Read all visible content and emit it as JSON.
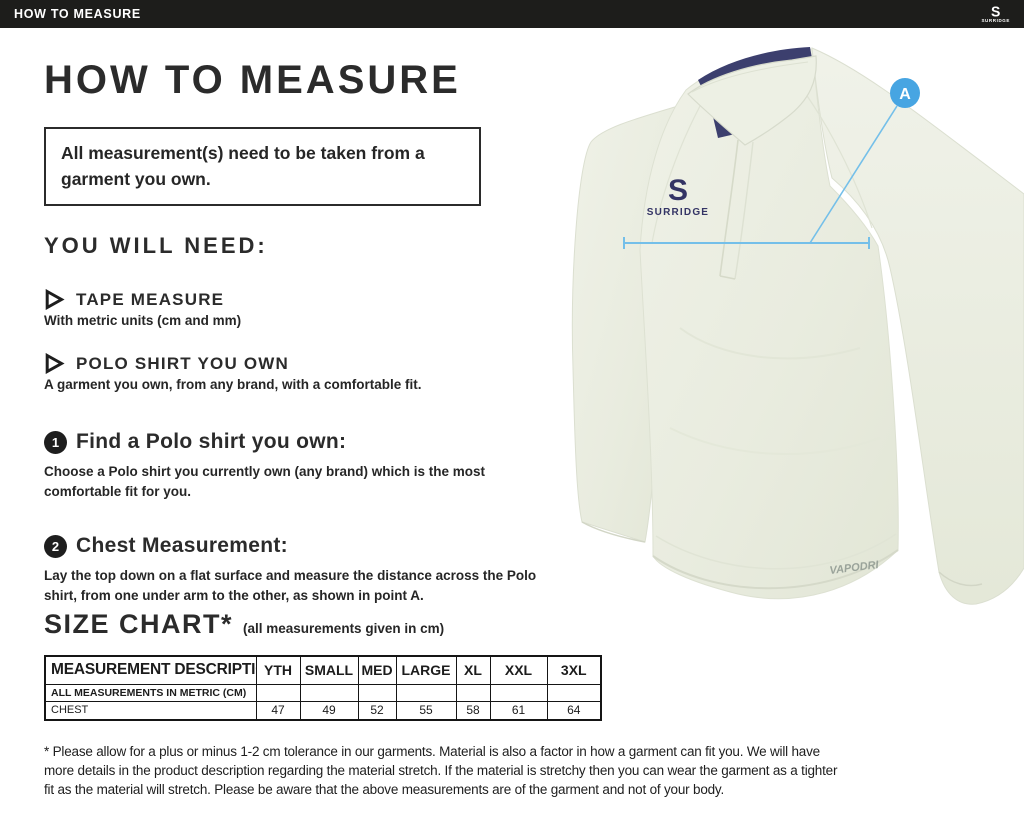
{
  "topbar": {
    "title": "HOW TO MEASURE",
    "brand_initial": "S",
    "brand_name": "SURRIDGE"
  },
  "page": {
    "title": "HOW TO MEASURE",
    "note": "All measurement(s) need to be taken from a garment you own.",
    "you_will_need": {
      "heading": "YOU WILL NEED:",
      "items": [
        {
          "title": "TAPE MEASURE",
          "description": "With metric units (cm and mm)"
        },
        {
          "title": "POLO SHIRT YOU OWN",
          "description": "A garment you own, from any brand, with a comfortable fit."
        }
      ]
    },
    "steps": [
      {
        "number": "1",
        "title": "Find a Polo shirt you own:",
        "description": "Choose a Polo shirt you currently own (any brand) which is the most comfortable fit for you."
      },
      {
        "number": "2",
        "title": "Chest Measurement:",
        "description": "Lay the top down on a flat surface and measure the distance across the Polo shirt, from one under arm to the other, as shown in point A."
      }
    ],
    "size_chart": {
      "heading": "SIZE CHART*",
      "subheading": "(all measurements given in cm)",
      "table": {
        "columns": [
          "MEASUREMENT DESCRIPTION",
          "YTH",
          "SMALL",
          "MED",
          "LARGE",
          "XL",
          "XXL",
          "3XL"
        ],
        "rows": [
          {
            "label": "ALL MEASUREMENTS IN METRIC (CM)",
            "values": [
              "",
              "",
              "",
              "",
              "",
              "",
              ""
            ]
          },
          {
            "label": "CHEST",
            "values": [
              "47",
              "49",
              "52",
              "55",
              "58",
              "61",
              "64"
            ]
          }
        ]
      }
    },
    "disclaimer": "* Please allow for a plus or minus 1-2 cm tolerance in our garments. Material is also a factor in how a garment can fit you. We will have more details in the product description regarding the material stretch.  If the material is stretchy then you can wear the garment as a tighter fit as the material will stretch.  Please be aware that the above measurements are of the garment and not of your body."
  },
  "illustration": {
    "point_label": "A",
    "shirt_logo_initial": "S",
    "shirt_logo_name": "SURRIDGE",
    "fabric_tech_label": "VAPODRI",
    "colors": {
      "accent_blue": "#47a5e2",
      "line_blue": "#74bfe9",
      "fabric": "#e9ecdf",
      "collar_navy": "#3c3f6e",
      "bar_black": "#1d1d1b"
    }
  }
}
